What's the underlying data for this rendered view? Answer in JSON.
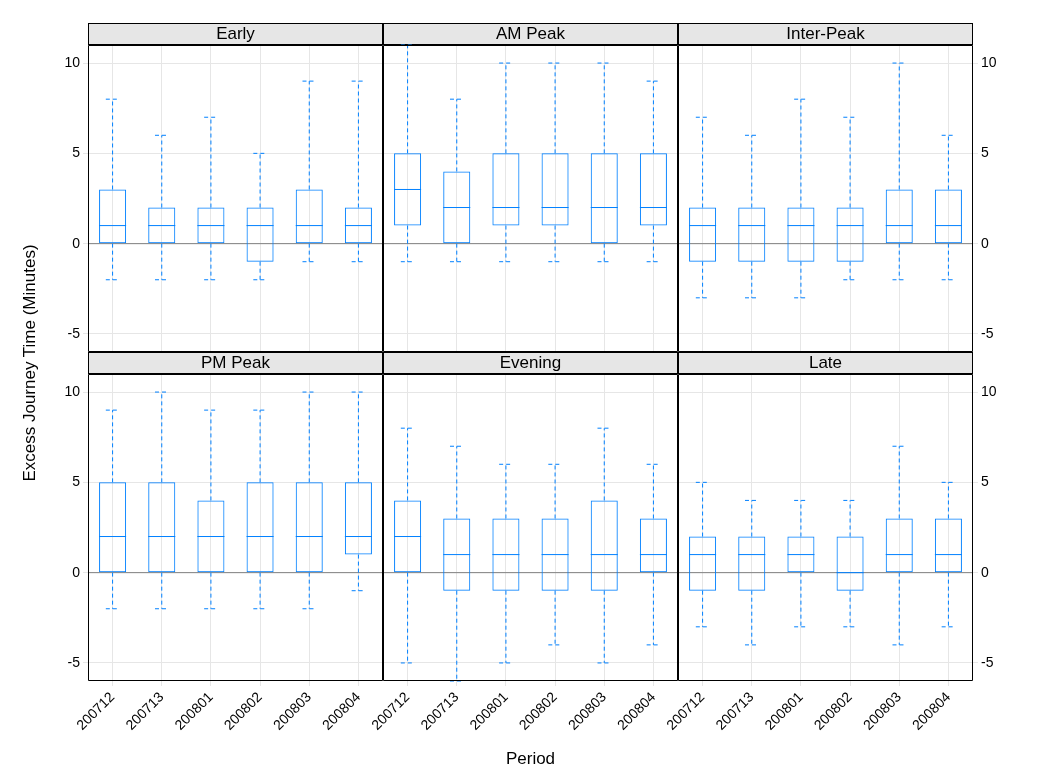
{
  "chart_data": [
    {
      "type": "box",
      "title": "Early",
      "ylabel": "Excess Journey Time (Minutes)",
      "categories": [
        "200712",
        "200713",
        "200801",
        "200802",
        "200803",
        "200804"
      ],
      "color": "#0080ff",
      "line_style": "dashed",
      "ylim": [
        -6,
        11
      ],
      "yticks": [
        -5,
        0,
        5,
        10
      ],
      "grid": true,
      "tick_labels": "y",
      "ref_lines": [
        {
          "axis": "y",
          "value": 0,
          "color": "#808080"
        }
      ],
      "boxes": [
        {
          "low": -2,
          "q1": 0,
          "median": 1,
          "q3": 3,
          "high": 8
        },
        {
          "low": -2,
          "q1": 0,
          "median": 1,
          "q3": 2,
          "high": 6
        },
        {
          "low": -2,
          "q1": 0,
          "median": 1,
          "q3": 2,
          "high": 7
        },
        {
          "low": -2,
          "q1": -1,
          "median": 1,
          "q3": 2,
          "high": 5
        },
        {
          "low": -1,
          "q1": 0,
          "median": 1,
          "q3": 3,
          "high": 9
        },
        {
          "low": -1,
          "q1": 0,
          "median": 1,
          "q3": 2,
          "high": 9
        }
      ]
    },
    {
      "type": "box",
      "title": "AM Peak",
      "categories": [
        "200712",
        "200713",
        "200801",
        "200802",
        "200803",
        "200804"
      ],
      "color": "#0080ff",
      "line_style": "dashed",
      "ylim": [
        -6,
        11
      ],
      "yticks": [
        -5,
        0,
        5,
        10
      ],
      "grid": true,
      "tick_labels": false,
      "ref_lines": [
        {
          "axis": "y",
          "value": 0,
          "color": "#808080"
        }
      ],
      "boxes": [
        {
          "low": -1,
          "q1": 1,
          "median": 3,
          "q3": 5,
          "high": 11
        },
        {
          "low": -1,
          "q1": 0,
          "median": 2,
          "q3": 4,
          "high": 8
        },
        {
          "low": -1,
          "q1": 1,
          "median": 2,
          "q3": 5,
          "high": 10
        },
        {
          "low": -1,
          "q1": 1,
          "median": 2,
          "q3": 5,
          "high": 10
        },
        {
          "low": -1,
          "q1": 0,
          "median": 2,
          "q3": 5,
          "high": 10
        },
        {
          "low": -1,
          "q1": 1,
          "median": 2,
          "q3": 5,
          "high": 9
        }
      ]
    },
    {
      "type": "box",
      "title": "Inter-Peak",
      "categories": [
        "200712",
        "200713",
        "200801",
        "200802",
        "200803",
        "200804"
      ],
      "color": "#0080ff",
      "line_style": "dashed",
      "ylim": [
        -6,
        11
      ],
      "yticks": [
        -5,
        0,
        5,
        10
      ],
      "grid": true,
      "tick_labels": "y",
      "ref_lines": [
        {
          "axis": "y",
          "value": 0,
          "color": "#808080"
        }
      ],
      "boxes": [
        {
          "low": -3,
          "q1": -1,
          "median": 1,
          "q3": 2,
          "high": 7
        },
        {
          "low": -3,
          "q1": -1,
          "median": 1,
          "q3": 2,
          "high": 6
        },
        {
          "low": -3,
          "q1": -1,
          "median": 1,
          "q3": 2,
          "high": 8
        },
        {
          "low": -2,
          "q1": -1,
          "median": 1,
          "q3": 2,
          "high": 7
        },
        {
          "low": -2,
          "q1": 0,
          "median": 1,
          "q3": 3,
          "high": 10
        },
        {
          "low": -2,
          "q1": 0,
          "median": 1,
          "q3": 3,
          "high": 6
        }
      ]
    },
    {
      "type": "box",
      "title": "PM Peak",
      "categories": [
        "200712",
        "200713",
        "200801",
        "200802",
        "200803",
        "200804"
      ],
      "color": "#0080ff",
      "line_style": "dashed",
      "ylim": [
        -6,
        11
      ],
      "yticks": [
        -5,
        0,
        5,
        10
      ],
      "grid": true,
      "ref_lines": [
        {
          "axis": "y",
          "value": 0,
          "color": "#808080"
        }
      ],
      "boxes": [
        {
          "low": -2,
          "q1": 0,
          "median": 2,
          "q3": 5,
          "high": 9
        },
        {
          "low": -2,
          "q1": 0,
          "median": 2,
          "q3": 5,
          "high": 10
        },
        {
          "low": -2,
          "q1": 0,
          "median": 2,
          "q3": 4,
          "high": 9
        },
        {
          "low": -2,
          "q1": 0,
          "median": 2,
          "q3": 5,
          "high": 9
        },
        {
          "low": -2,
          "q1": 0,
          "median": 2,
          "q3": 5,
          "high": 10
        },
        {
          "low": -1,
          "q1": 1,
          "median": 2,
          "q3": 5,
          "high": 10
        }
      ]
    },
    {
      "type": "box",
      "title": "Evening",
      "xlabel": "Period",
      "categories": [
        "200712",
        "200713",
        "200801",
        "200802",
        "200803",
        "200804"
      ],
      "color": "#0080ff",
      "line_style": "dashed",
      "ylim": [
        -6,
        11
      ],
      "yticks": [
        -5,
        0,
        5,
        10
      ],
      "grid": true,
      "tick_labels": "x",
      "ref_lines": [
        {
          "axis": "y",
          "value": 0,
          "color": "#808080"
        }
      ],
      "boxes": [
        {
          "low": -5,
          "q1": 0,
          "median": 2,
          "q3": 4,
          "high": 8
        },
        {
          "low": -6,
          "q1": -1,
          "median": 1,
          "q3": 3,
          "high": 7
        },
        {
          "low": -5,
          "q1": -1,
          "median": 1,
          "q3": 3,
          "high": 6
        },
        {
          "low": -4,
          "q1": -1,
          "median": 1,
          "q3": 3,
          "high": 6
        },
        {
          "low": -5,
          "q1": -1,
          "median": 1,
          "q3": 4,
          "high": 8
        },
        {
          "low": -4,
          "q1": 0,
          "median": 1,
          "q3": 3,
          "high": 6
        }
      ]
    },
    {
      "type": "box",
      "title": "Late",
      "categories": [
        "200712",
        "200713",
        "200801",
        "200802",
        "200803",
        "200804"
      ],
      "color": "#0080ff",
      "line_style": "dashed",
      "ylim": [
        -6,
        11
      ],
      "yticks": [
        -5,
        0,
        5,
        10
      ],
      "grid": true,
      "ref_lines": [
        {
          "axis": "y",
          "value": 0,
          "color": "#808080"
        }
      ],
      "boxes": [
        {
          "low": -3,
          "q1": -1,
          "median": 1,
          "q3": 2,
          "high": 5
        },
        {
          "low": -4,
          "q1": -1,
          "median": 1,
          "q3": 2,
          "high": 4
        },
        {
          "low": -3,
          "q1": 0,
          "median": 1,
          "q3": 2,
          "high": 4
        },
        {
          "low": -3,
          "q1": -1,
          "median": 0,
          "q3": 2,
          "high": 4
        },
        {
          "low": -4,
          "q1": 0,
          "median": 1,
          "q3": 3,
          "high": 7
        },
        {
          "low": -3,
          "q1": 0,
          "median": 1,
          "q3": 3,
          "high": 5
        }
      ]
    }
  ]
}
